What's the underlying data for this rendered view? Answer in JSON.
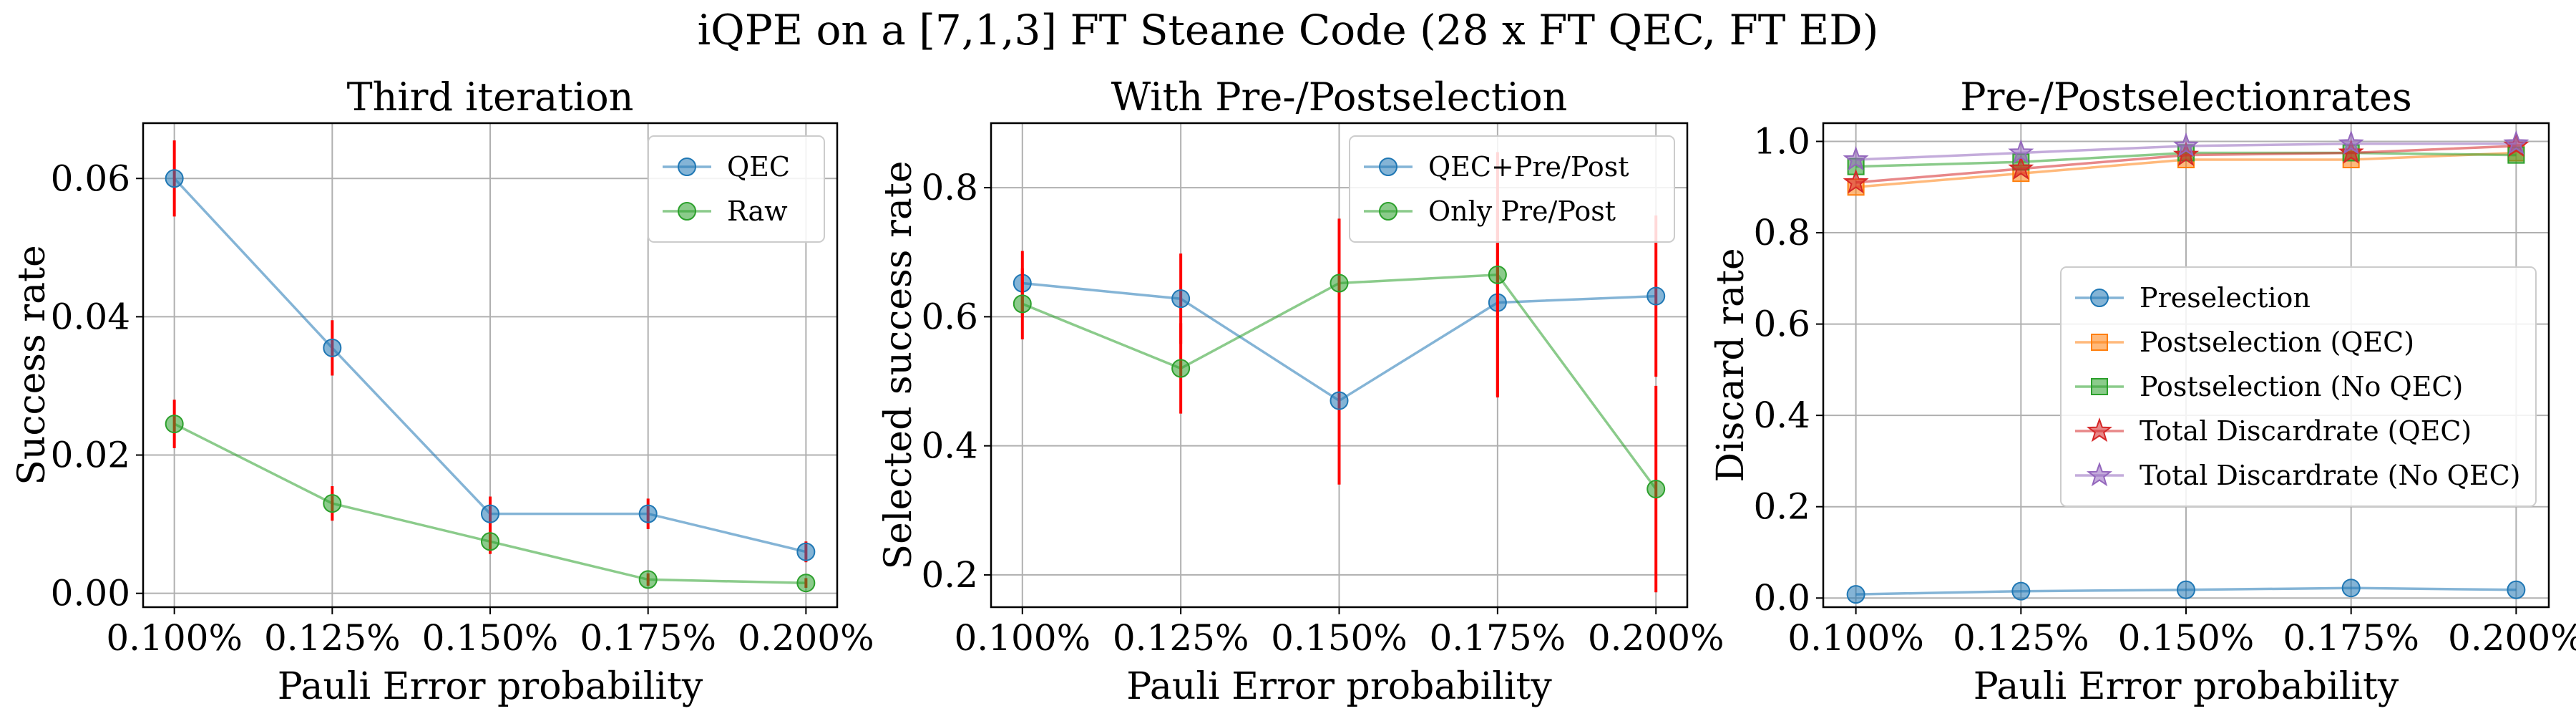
{
  "figure": {
    "suptitle": "iQPE on a [7,1,3] FT Steane Code (28 x FT QEC, FT ED)"
  },
  "chart_data": [
    {
      "type": "line",
      "title": "Third iteration",
      "xlabel": "Pauli Error probability",
      "ylabel": "Success rate",
      "categories": [
        "0.100%",
        "0.125%",
        "0.150%",
        "0.175%",
        "0.200%"
      ],
      "ylim": [
        -0.002,
        0.068
      ],
      "yticks": [
        0.0,
        0.02,
        0.04,
        0.06
      ],
      "ytick_labels": [
        "0.00",
        "0.02",
        "0.04",
        "0.06"
      ],
      "grid": true,
      "legend": "top-right",
      "error_bar_color": "#ff0000",
      "series": [
        {
          "name": "QEC",
          "values": [
            0.06,
            0.0355,
            0.0115,
            0.0115,
            0.006
          ],
          "err": [
            0.0055,
            0.004,
            0.0025,
            0.0022,
            0.0015
          ],
          "color": "#1f77b4",
          "marker": "circle"
        },
        {
          "name": "Raw",
          "values": [
            0.0245,
            0.013,
            0.0075,
            0.002,
            0.0015
          ],
          "err": [
            0.0035,
            0.0025,
            0.0018,
            0.0009,
            0.0007
          ],
          "color": "#2ca02c",
          "marker": "circle"
        }
      ]
    },
    {
      "type": "line",
      "title": "With Pre-/Postselection",
      "xlabel": "Pauli Error probability",
      "ylabel": "Selected success rate",
      "categories": [
        "0.100%",
        "0.125%",
        "0.150%",
        "0.175%",
        "0.200%"
      ],
      "ylim": [
        0.15,
        0.9
      ],
      "yticks": [
        0.2,
        0.4,
        0.6,
        0.8
      ],
      "ytick_labels": [
        "0.2",
        "0.4",
        "0.6",
        "0.8"
      ],
      "grid": true,
      "legend": "top-right",
      "error_bar_color": "#ff0000",
      "series": [
        {
          "name": "QEC+Pre/Post",
          "values": [
            0.652,
            0.628,
            0.47,
            0.622,
            0.632
          ],
          "err": [
            0.05,
            0.07,
            0.13,
            0.145,
            0.125
          ],
          "color": "#1f77b4",
          "marker": "circle"
        },
        {
          "name": "Only Pre/Post",
          "values": [
            0.62,
            0.52,
            0.652,
            0.665,
            0.333
          ],
          "err": [
            0.055,
            0.07,
            0.1,
            0.19,
            0.16
          ],
          "color": "#2ca02c",
          "marker": "circle"
        }
      ]
    },
    {
      "type": "line",
      "title": "Pre-/Postselectionrates",
      "xlabel": "Pauli Error probability",
      "ylabel": "Discard rate",
      "categories": [
        "0.100%",
        "0.125%",
        "0.150%",
        "0.175%",
        "0.200%"
      ],
      "ylim": [
        -0.02,
        1.04
      ],
      "yticks": [
        0.0,
        0.2,
        0.4,
        0.6,
        0.8,
        1.0
      ],
      "ytick_labels": [
        "0.0",
        "0.2",
        "0.4",
        "0.6",
        "0.8",
        "1.0"
      ],
      "grid": true,
      "legend": "center-right",
      "series": [
        {
          "name": "Preselection",
          "values": [
            0.008,
            0.015,
            0.018,
            0.022,
            0.018
          ],
          "color": "#1f77b4",
          "marker": "circle"
        },
        {
          "name": "Postselection (QEC)",
          "values": [
            0.9,
            0.93,
            0.96,
            0.96,
            0.975
          ],
          "color": "#ff7f0e",
          "marker": "square"
        },
        {
          "name": "Postselection (No QEC)",
          "values": [
            0.945,
            0.955,
            0.975,
            0.975,
            0.97
          ],
          "color": "#2ca02c",
          "marker": "square"
        },
        {
          "name": "Total Discardrate (QEC)",
          "values": [
            0.91,
            0.94,
            0.97,
            0.975,
            0.99
          ],
          "color": "#d62728",
          "marker": "star"
        },
        {
          "name": "Total Discardrate (No QEC)",
          "values": [
            0.96,
            0.975,
            0.99,
            0.995,
            0.995
          ],
          "color": "#9467bd",
          "marker": "star"
        }
      ]
    }
  ]
}
